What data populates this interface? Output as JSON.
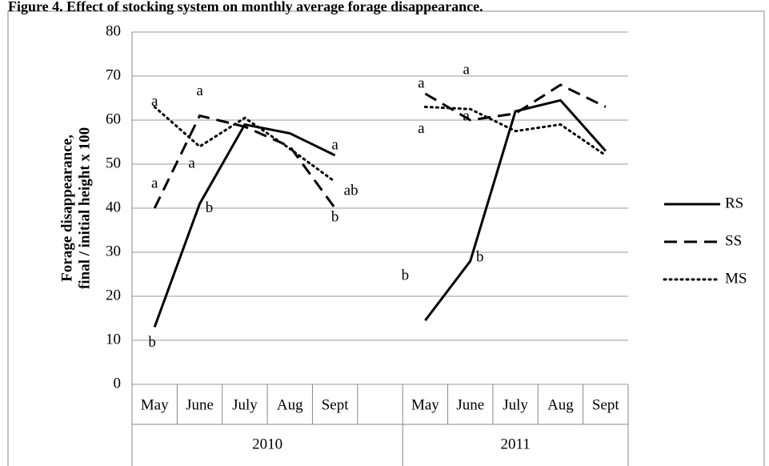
{
  "chart_data": {
    "type": "line",
    "title": "Figure 4.  Effect of stocking system on monthly average forage disappearance.",
    "ylabel": [
      "Forage disappearance,",
      "final / initial height x 100"
    ],
    "categories": [
      "May",
      "June",
      "July",
      "Aug",
      "Sept",
      null,
      "May",
      "June",
      "July",
      "Aug",
      "Sept"
    ],
    "groups": [
      "2010",
      "2011"
    ],
    "ylim": [
      0,
      80
    ],
    "yticks": [
      0,
      10,
      20,
      30,
      40,
      50,
      60,
      70,
      80
    ],
    "grid": true,
    "legend": "right",
    "series": [
      {
        "name": "RS",
        "color": "#000000",
        "line_style": "solid",
        "values": [
          13,
          41,
          59,
          57,
          52,
          null,
          14.5,
          28,
          62,
          64.5,
          53
        ],
        "letters": [
          "b",
          "b",
          null,
          null,
          "a",
          null,
          "b",
          "b",
          null,
          null,
          null
        ]
      },
      {
        "name": "SS",
        "color": "#000000",
        "line_style": "dashed",
        "values": [
          40,
          61,
          58.5,
          54,
          40,
          null,
          66,
          60,
          61.5,
          68,
          63
        ],
        "letters": [
          "a",
          "a",
          null,
          null,
          "b",
          null,
          "a",
          "a",
          null,
          null,
          null
        ]
      },
      {
        "name": "MS",
        "color": "#000000",
        "line_style": "dotted",
        "values": [
          63,
          54,
          60.5,
          53.5,
          46,
          null,
          63,
          62.5,
          57.5,
          59,
          52
        ],
        "letters": [
          "a",
          "a",
          null,
          null,
          "ab",
          null,
          "a",
          "a",
          null,
          null,
          null
        ]
      }
    ]
  }
}
